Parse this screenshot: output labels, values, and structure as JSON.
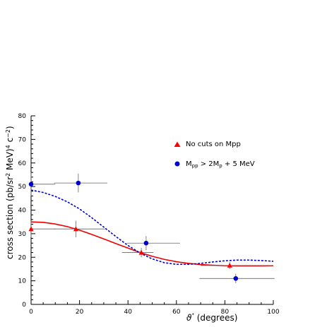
{
  "chart_data": {
    "type": "scatter",
    "title": "",
    "xlabel": "ϑ* (degrees)",
    "ylabel": "cross section (pb/sr² MeV)⁴ c⁻²)",
    "xlim": [
      0,
      100
    ],
    "ylim": [
      0,
      80
    ],
    "x_ticks": [
      "0",
      "20",
      "40",
      "60",
      "80",
      "100"
    ],
    "y_ticks": [
      "0",
      "10",
      "20",
      "30",
      "40",
      "50",
      "60",
      "70",
      "80"
    ],
    "grid": false,
    "legend_position": "top-right",
    "series": [
      {
        "name": "No cuts on Mpp",
        "marker": "triangle",
        "color": "#ff0000",
        "points": [
          {
            "x": 0,
            "y": 32.0,
            "xerr_lo": 0,
            "xerr_hi": 10,
            "yerr": 3.5
          },
          {
            "x": 18.5,
            "y": 32.0,
            "xerr_lo": 9,
            "xerr_hi": 12,
            "yerr": 3.5
          },
          {
            "x": 45.5,
            "y": 22.0,
            "xerr_lo": 8,
            "xerr_hi": 5,
            "yerr": 2.0
          },
          {
            "x": 82,
            "y": 16.5,
            "xerr_lo": 12,
            "xerr_hi": 18,
            "yerr": 1.5
          }
        ]
      },
      {
        "name": "Mpp > 2Mp + 5 MeV",
        "marker": "circle",
        "color": "#0000cc",
        "points": [
          {
            "x": 0,
            "y": 51.0,
            "xerr_lo": 0,
            "xerr_hi": 10,
            "yerr": 5.0
          },
          {
            "x": 19.5,
            "y": 51.5,
            "xerr_lo": 10,
            "xerr_hi": 12,
            "yerr": 4.0
          },
          {
            "x": 47.5,
            "y": 26.0,
            "xerr_lo": 8,
            "xerr_hi": 14,
            "yerr": 3.0
          },
          {
            "x": 84.5,
            "y": 11.0,
            "xerr_lo": 15,
            "xerr_hi": 16,
            "yerr": 2.0
          }
        ]
      }
    ],
    "fits": [
      {
        "series": "No cuts on Mpp",
        "style": "solid",
        "color": "#ee0000",
        "x": [
          0,
          5,
          10,
          15,
          20,
          25,
          30,
          35,
          40,
          45,
          50,
          55,
          60,
          65,
          70,
          75,
          80,
          85,
          90,
          95,
          100
        ],
        "y": [
          35.0,
          34.8,
          34.1,
          33.0,
          31.5,
          29.7,
          27.8,
          25.8,
          23.9,
          22.0,
          20.4,
          19.1,
          18.1,
          17.4,
          16.9,
          16.6,
          16.4,
          16.3,
          16.3,
          16.3,
          16.4
        ]
      },
      {
        "series": "Mpp > 2Mp + 5 MeV",
        "style": "dashed",
        "color": "#0000cc",
        "x": [
          0,
          5,
          10,
          15,
          20,
          25,
          30,
          35,
          40,
          45,
          50,
          55,
          60,
          65,
          70,
          75,
          80,
          85,
          90,
          95,
          100
        ],
        "y": [
          48.5,
          47.5,
          45.8,
          43.5,
          40.5,
          36.8,
          32.8,
          28.8,
          25.0,
          21.8,
          19.3,
          17.7,
          17.0,
          17.0,
          17.4,
          18.0,
          18.5,
          18.8,
          18.8,
          18.6,
          18.3
        ]
      }
    ]
  },
  "legend": {
    "entry1": "No cuts on Mpp",
    "entry2_main": "M",
    "entry2_sub1": "pp",
    "entry2_mid": " > 2M",
    "entry2_sub2": "p",
    "entry2_tail": " + 5 MeV"
  }
}
